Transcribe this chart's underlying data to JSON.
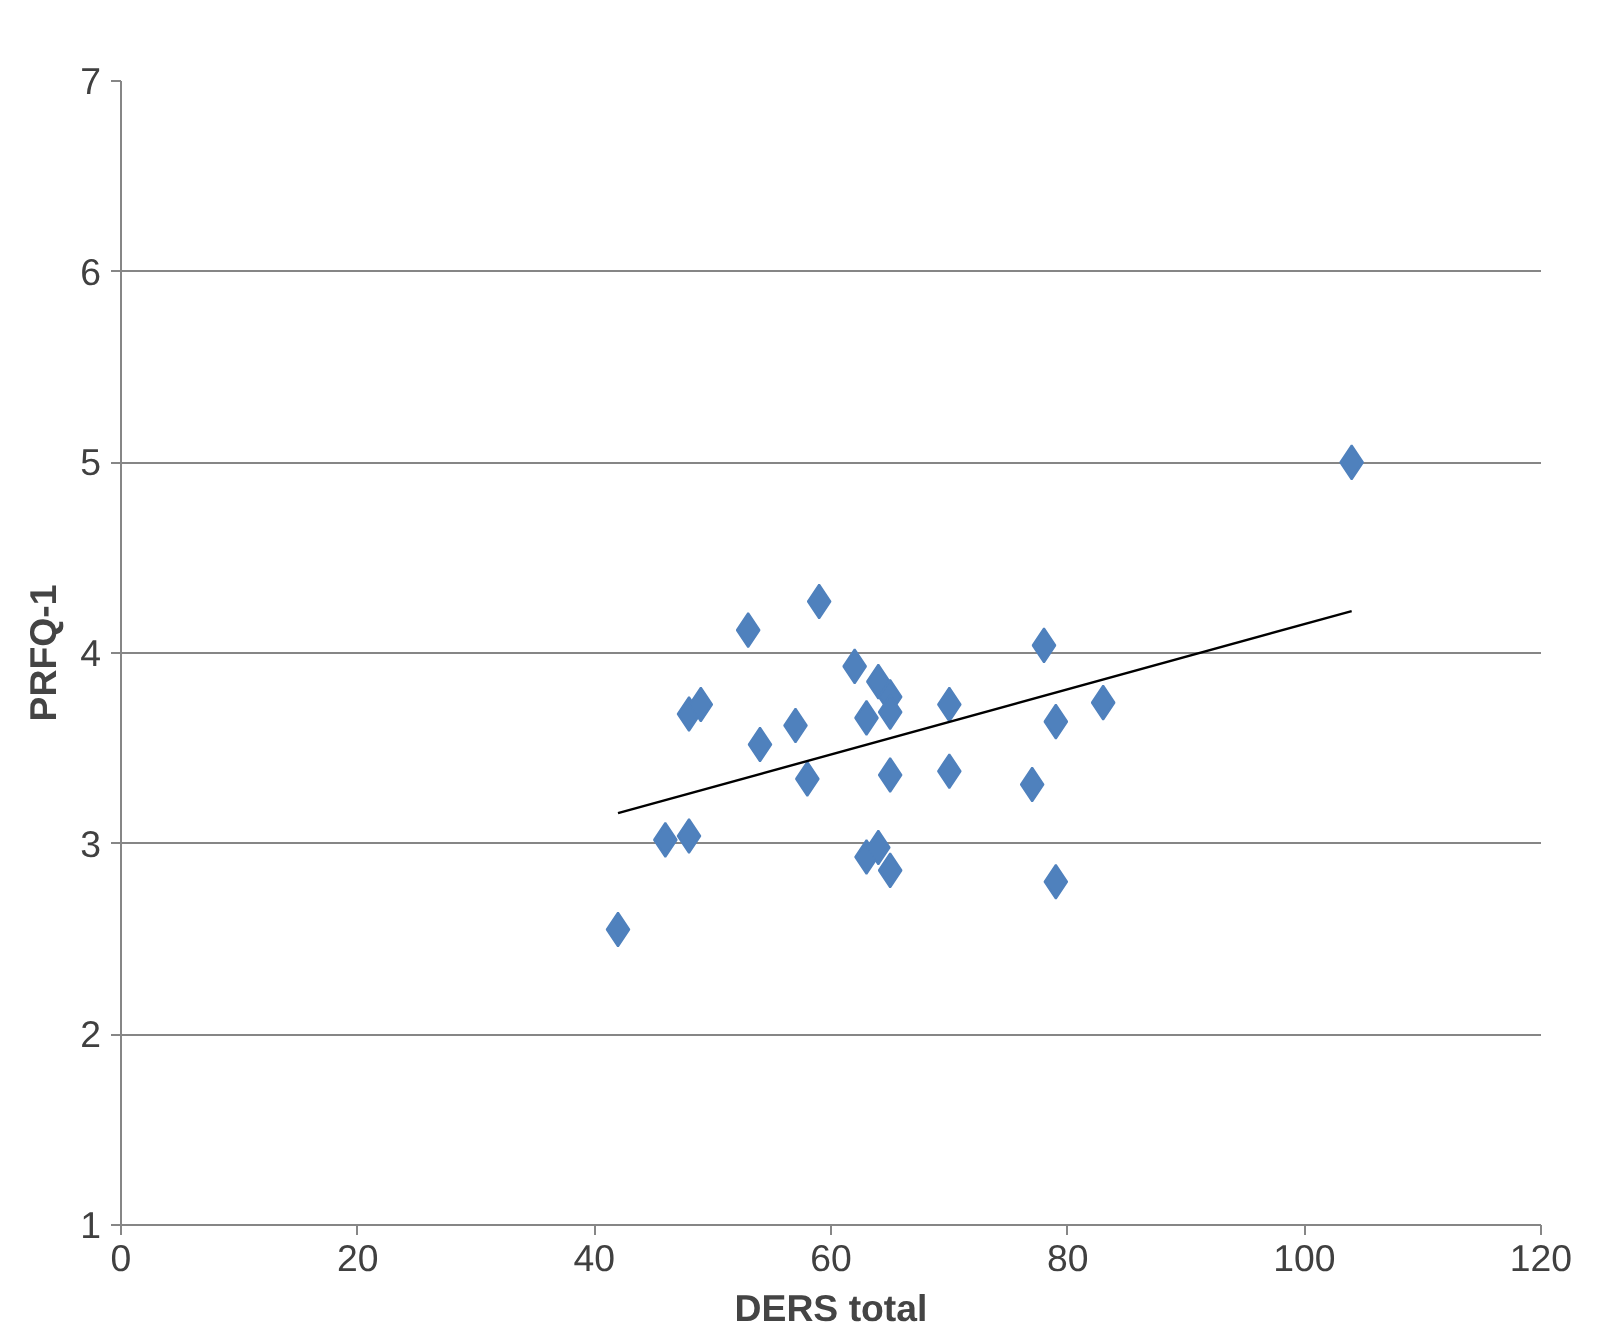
{
  "chart_data": {
    "type": "scatter",
    "xlabel": "DERS total",
    "ylabel": "PRFQ-1",
    "marker": "diamond",
    "grid": "y",
    "xlim": [
      0,
      120
    ],
    "ylim": [
      1,
      7
    ],
    "xticks": [
      0,
      20,
      40,
      60,
      80,
      100,
      120
    ],
    "yticks": [
      1,
      2,
      3,
      4,
      5,
      6,
      7
    ],
    "series": [
      {
        "color": "#4f81bd",
        "x": [
          42,
          46,
          48,
          48,
          49,
          53,
          54,
          57,
          58,
          59,
          62,
          63,
          64,
          65,
          65,
          63,
          64,
          65,
          65,
          70,
          70,
          77,
          78,
          79,
          79,
          83,
          104
        ],
        "values": [
          2.55,
          3.02,
          3.04,
          3.68,
          3.73,
          4.12,
          3.52,
          3.62,
          3.34,
          4.27,
          3.93,
          3.66,
          3.85,
          3.77,
          3.69,
          2.93,
          2.98,
          2.86,
          3.36,
          3.73,
          3.38,
          3.31,
          4.04,
          3.64,
          2.8,
          3.74,
          5.0
        ]
      },
      {
        "type": "line",
        "color": "#000000",
        "marker": "none",
        "x": [
          42,
          104
        ],
        "values": [
          3.16,
          4.22
        ]
      }
    ]
  }
}
